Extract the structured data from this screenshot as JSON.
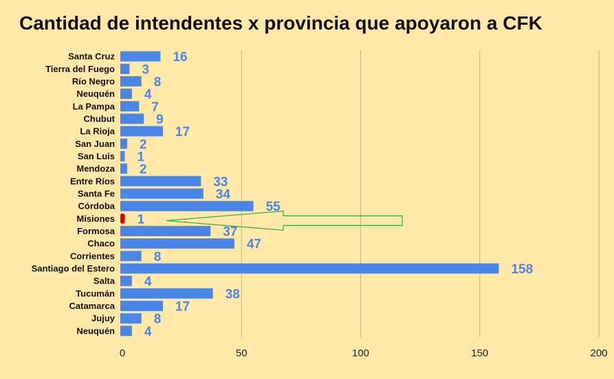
{
  "chart_data": {
    "type": "bar",
    "orientation": "horizontal",
    "title": "Cantidad de intendentes x provincia que apoyaron a CFK",
    "categories": [
      "Santa Cruz",
      "Tierra del Fuego",
      "Río Negro",
      "Neuquén",
      "La Pampa",
      "Chubut",
      "La Rioja",
      "San Juan",
      "San Luis",
      "Mendoza",
      "Entre Ríos",
      "Santa Fe",
      "Córdoba",
      "Misiones",
      "Formosa",
      "Chaco",
      "Corrientes",
      "Santiago del Estero",
      "Salta",
      "Tucumán",
      "Catamarca",
      "Jujuy",
      "Neuquén"
    ],
    "values": [
      16,
      3,
      8,
      4,
      7,
      9,
      17,
      2,
      1,
      2,
      33,
      34,
      55,
      1,
      37,
      47,
      8,
      158,
      4,
      38,
      17,
      8,
      4
    ],
    "xlim": [
      0,
      200
    ],
    "xticks": [
      0,
      50,
      100,
      150,
      200
    ],
    "grid": true,
    "bar_color": "#4a86e8",
    "highlight": {
      "category": "Misiones",
      "color": "#e00000"
    },
    "arrow_pointing_to": "Misiones",
    "arrow_color": "#2ea84a"
  },
  "colors": {
    "background": "#ffe8a8",
    "gridline": "#c9b27a",
    "value_label": "#4a86e8"
  }
}
